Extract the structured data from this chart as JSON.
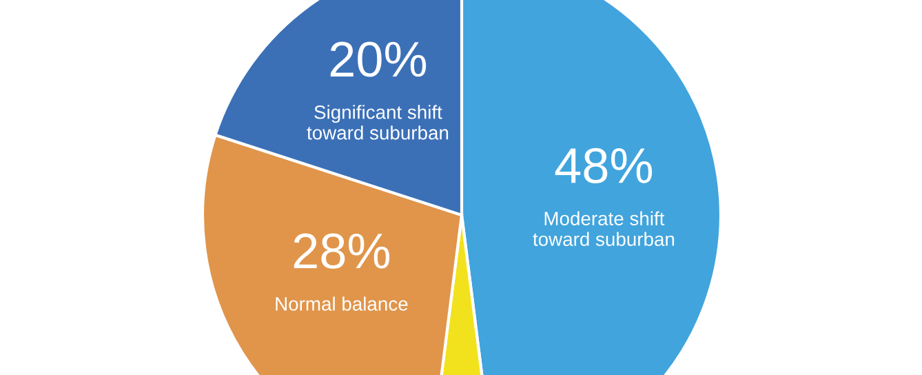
{
  "chart_data": {
    "type": "pie",
    "categories": [
      "Moderate shift\ntoward suburban",
      null,
      "Normal balance",
      "Significant shift\ntoward suburban"
    ],
    "values": [
      48,
      4,
      28,
      20
    ],
    "value_labels": [
      "48%",
      null,
      "28%",
      "20%"
    ],
    "colors": [
      "#41a4dd",
      "#f2e21e",
      "#e0954b",
      "#3b70b7"
    ]
  }
}
